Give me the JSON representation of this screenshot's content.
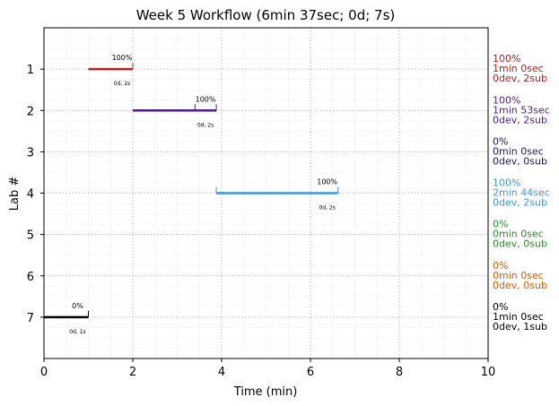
{
  "chart_data": {
    "type": "bar",
    "orientation": "horizontal",
    "title": "Week 5 Workflow (6min 37sec; 0d; 7s)",
    "xlabel": "Time (min)",
    "ylabel": "Lab #",
    "xlim": [
      0,
      10
    ],
    "xticks": [
      "0",
      "2",
      "4",
      "6",
      "8",
      "10"
    ],
    "ylim": [
      8,
      0
    ],
    "yticks": [
      "1",
      "2",
      "3",
      "4",
      "5",
      "6",
      "7"
    ],
    "grid": true,
    "series": [
      {
        "lab": 1,
        "color": "#b22222",
        "start": 1.0,
        "end": 2.0,
        "tick_marks": [
          2.0
        ],
        "pct_label": "100%",
        "sub_label": "0d, 2s",
        "side_lines": [
          "100%",
          "1min 0sec",
          "0dev, 2sub"
        ]
      },
      {
        "lab": 2,
        "color": "#4b1d8f",
        "start": 2.0,
        "end": 3.88,
        "tick_marks": [
          3.4,
          3.88
        ],
        "pct_label": "100%",
        "sub_label": "0d, 2s",
        "side_lines": [
          "100%",
          "1min 53sec",
          "0dev, 2sub"
        ]
      },
      {
        "lab": 3,
        "color": "#191970",
        "start": null,
        "end": null,
        "tick_marks": [],
        "pct_label": "",
        "sub_label": "",
        "side_lines": [
          "0%",
          "0min 0sec",
          "0dev, 0sub"
        ]
      },
      {
        "lab": 4,
        "color": "#3a96e8",
        "start": 3.88,
        "end": 6.62,
        "tick_marks": [
          3.88,
          6.62
        ],
        "pct_label": "100%",
        "sub_label": "0d, 2s",
        "side_lines": [
          "100%",
          "2min 44sec",
          "0dev, 2sub"
        ]
      },
      {
        "lab": 5,
        "color": "#2e8b2e",
        "start": null,
        "end": null,
        "tick_marks": [],
        "pct_label": "",
        "sub_label": "",
        "side_lines": [
          "0%",
          "0min 0sec",
          "0dev, 0sub"
        ]
      },
      {
        "lab": 6,
        "color": "#e05a00",
        "start": null,
        "end": null,
        "tick_marks": [],
        "pct_label": "",
        "sub_label": "",
        "side_lines": [
          "0%",
          "0min 0sec",
          "0dev, 0sub"
        ]
      },
      {
        "lab": 7,
        "color": "#000000",
        "start": 0.0,
        "end": 1.0,
        "tick_marks": [
          1.0
        ],
        "pct_label": "0%",
        "sub_label": "0d, 1s",
        "side_lines": [
          "0%",
          "1min 0sec",
          "0dev, 1sub"
        ]
      }
    ]
  }
}
